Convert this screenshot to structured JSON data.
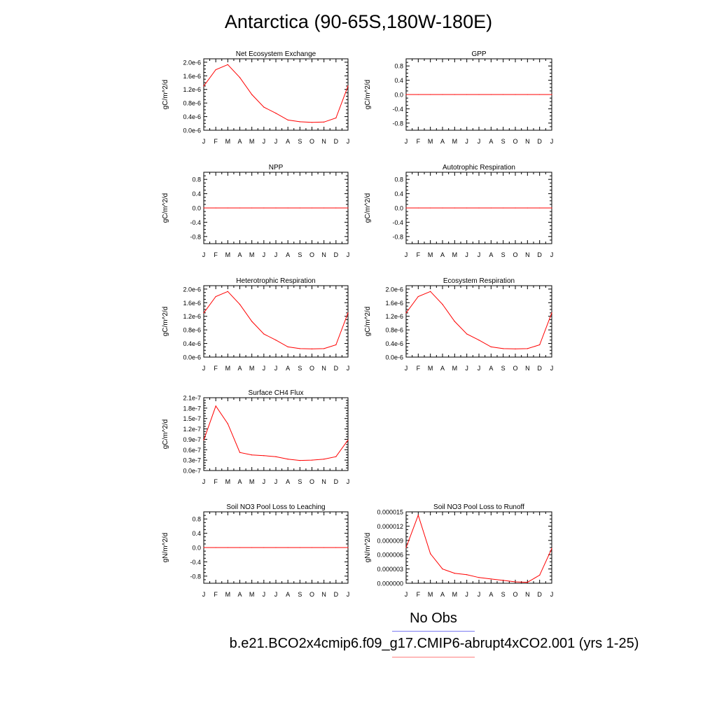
{
  "title": "Antarctica (90-65S,180W-180E)",
  "legend": {
    "obs_label": "No Obs",
    "case_label": "b.e21.BCO2x4cmip6.f09_g17.CMIP6-abrupt4xCO2.001 (yrs 1-25)",
    "obs_color": "#7b7bf2",
    "case_color": "#ff8080"
  },
  "colors": {
    "series": "#ff0000",
    "axis": "#000000"
  },
  "chart_data": [
    {
      "type": "line",
      "title": "Net Ecosystem Exchange",
      "ylabel": "gC/m^2/d",
      "categories": [
        "J",
        "F",
        "M",
        "A",
        "M",
        "J",
        "J",
        "A",
        "S",
        "O",
        "N",
        "D",
        "J"
      ],
      "yticks": [
        "0.0e-6",
        "0.4e-6",
        "0.8e-6",
        "1.2e-6",
        "1.6e-6",
        "2.0e-6"
      ],
      "ylim": [
        0,
        2.1
      ],
      "values": [
        1.3,
        1.78,
        1.93,
        1.55,
        1.05,
        0.68,
        0.5,
        0.3,
        0.25,
        0.23,
        0.24,
        0.36,
        1.3
      ]
    },
    {
      "type": "line",
      "title": "GPP",
      "ylabel": "gC/m^2/d",
      "categories": [
        "J",
        "F",
        "M",
        "A",
        "M",
        "J",
        "J",
        "A",
        "S",
        "O",
        "N",
        "D",
        "J"
      ],
      "yticks": [
        "-0.8",
        "-0.4",
        "0.0",
        "0.4",
        "0.8"
      ],
      "ylim": [
        -1,
        1
      ],
      "values": [
        0,
        0,
        0,
        0,
        0,
        0,
        0,
        0,
        0,
        0,
        0,
        0,
        0
      ]
    },
    {
      "type": "line",
      "title": "NPP",
      "ylabel": "gC/m^2/d",
      "categories": [
        "J",
        "F",
        "M",
        "A",
        "M",
        "J",
        "J",
        "A",
        "S",
        "O",
        "N",
        "D",
        "J"
      ],
      "yticks": [
        "-0.8",
        "-0.4",
        "0.0",
        "0.4",
        "0.8"
      ],
      "ylim": [
        -1,
        1
      ],
      "values": [
        0,
        0,
        0,
        0,
        0,
        0,
        0,
        0,
        0,
        0,
        0,
        0,
        0
      ]
    },
    {
      "type": "line",
      "title": "Autotrophic Respiration",
      "ylabel": "gC/m^2/d",
      "categories": [
        "J",
        "F",
        "M",
        "A",
        "M",
        "J",
        "J",
        "A",
        "S",
        "O",
        "N",
        "D",
        "J"
      ],
      "yticks": [
        "-0.8",
        "-0.4",
        "0.0",
        "0.4",
        "0.8"
      ],
      "ylim": [
        -1,
        1
      ],
      "values": [
        0,
        0,
        0,
        0,
        0,
        0,
        0,
        0,
        0,
        0,
        0,
        0,
        0
      ]
    },
    {
      "type": "line",
      "title": "Heterotrophic Respiration",
      "ylabel": "gC/m^2/d",
      "categories": [
        "J",
        "F",
        "M",
        "A",
        "M",
        "J",
        "J",
        "A",
        "S",
        "O",
        "N",
        "D",
        "J"
      ],
      "yticks": [
        "0.0e-6",
        "0.4e-6",
        "0.8e-6",
        "1.2e-6",
        "1.6e-6",
        "2.0e-6"
      ],
      "ylim": [
        0,
        2.1
      ],
      "values": [
        1.3,
        1.78,
        1.93,
        1.55,
        1.05,
        0.68,
        0.5,
        0.3,
        0.25,
        0.24,
        0.25,
        0.36,
        1.3
      ]
    },
    {
      "type": "line",
      "title": "Ecosystem Respiration",
      "ylabel": "gC/m^2/d",
      "categories": [
        "J",
        "F",
        "M",
        "A",
        "M",
        "J",
        "J",
        "A",
        "S",
        "O",
        "N",
        "D",
        "J"
      ],
      "yticks": [
        "0.0e-6",
        "0.4e-6",
        "0.8e-6",
        "1.2e-6",
        "1.6e-6",
        "2.0e-6"
      ],
      "ylim": [
        0,
        2.1
      ],
      "values": [
        1.3,
        1.78,
        1.93,
        1.55,
        1.05,
        0.68,
        0.5,
        0.3,
        0.25,
        0.24,
        0.25,
        0.36,
        1.3
      ]
    },
    {
      "type": "line",
      "title": "Surface CH4 Flux",
      "ylabel": "gC/m^2/d",
      "categories": [
        "J",
        "F",
        "M",
        "A",
        "M",
        "J",
        "J",
        "A",
        "S",
        "O",
        "N",
        "D",
        "J"
      ],
      "yticks": [
        "0.0e-7",
        "0.3e-7",
        "0.6e-7",
        "0.9e-7",
        "1.2e-7",
        "1.5e-7",
        "1.8e-7",
        "2.1e-7"
      ],
      "ylim": [
        0,
        2.1
      ],
      "values": [
        0.88,
        1.86,
        1.35,
        0.52,
        0.45,
        0.43,
        0.4,
        0.33,
        0.29,
        0.3,
        0.33,
        0.4,
        0.88
      ]
    },
    {
      "type": "line",
      "title": "Soil NO3 Pool Loss to Leaching",
      "ylabel": "gN/m^2/d",
      "categories": [
        "J",
        "F",
        "M",
        "A",
        "M",
        "J",
        "J",
        "A",
        "S",
        "O",
        "N",
        "D",
        "J"
      ],
      "yticks": [
        "-0.8",
        "-0.4",
        "0.0",
        "0.4",
        "0.8"
      ],
      "ylim": [
        -1,
        1
      ],
      "values": [
        0,
        0,
        0,
        0,
        0,
        0,
        0,
        0,
        0,
        0,
        0,
        0,
        0
      ]
    },
    {
      "type": "line",
      "title": "Soil NO3 Pool Loss to Runoff",
      "ylabel": "gN/m^2/d",
      "categories": [
        "J",
        "F",
        "M",
        "A",
        "M",
        "J",
        "J",
        "A",
        "S",
        "O",
        "N",
        "D",
        "J"
      ],
      "yticks": [
        "0.000000",
        "0.000003",
        "0.000006",
        "0.000009",
        "0.000012",
        "0.000015"
      ],
      "ylim": [
        0,
        1.5e-05
      ],
      "values": [
        7.5e-06,
        1.43e-05,
        6.2e-06,
        3e-06,
        2.1e-06,
        1.8e-06,
        1.2e-06,
        9e-07,
        6e-07,
        3e-07,
        2e-07,
        1.7e-06,
        7.3e-06
      ]
    }
  ]
}
